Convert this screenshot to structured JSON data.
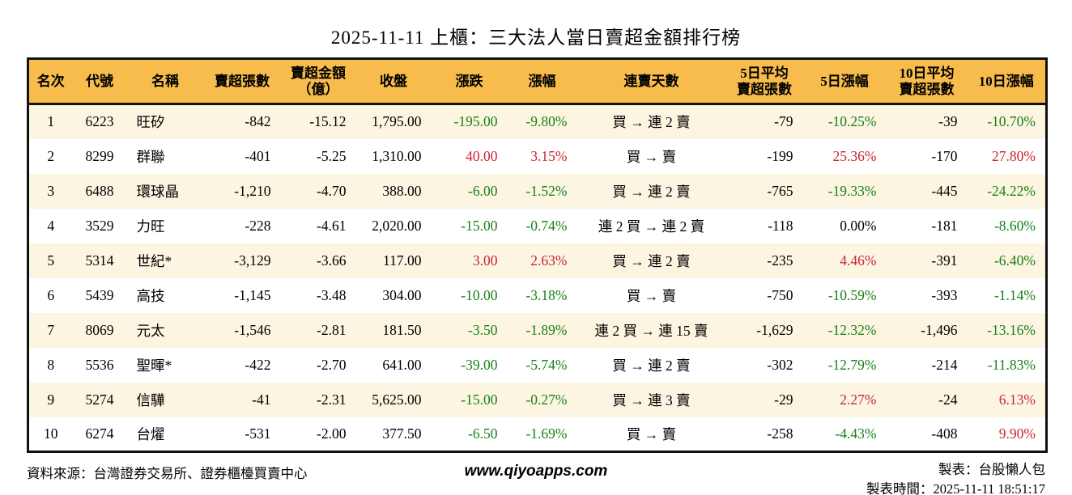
{
  "title": "2025-11-11 上櫃：三大法人當日賣超金額排行榜",
  "colors": {
    "header_bg": "#f8bc4c",
    "alt_row_bg": "#fcf5e2",
    "up_red": "#cb2230",
    "down_green": "#168116",
    "text": "#000000",
    "border": "#111111"
  },
  "table": {
    "headers": [
      "名次",
      "代號",
      "名稱",
      "賣超張數",
      "賣超金額\n（億）",
      "收盤",
      "漲跌",
      "漲幅",
      "連賣天數",
      "5日平均\n賣超張數",
      "5日漲幅",
      "10日平均\n賣超張數",
      "10日漲幅"
    ],
    "rows": [
      {
        "rank": "1",
        "code": "6223",
        "name": "旺矽",
        "sell_volume": "-842",
        "sell_amount": "-15.12",
        "close": "1,795.00",
        "change": "-195.00",
        "change_pct": "-9.80%",
        "streak": "買 → 連 2 賣",
        "avg5": "-79",
        "pct5": "-10.25%",
        "avg10": "-39",
        "pct10": "-10.70%"
      },
      {
        "rank": "2",
        "code": "8299",
        "name": "群聯",
        "sell_volume": "-401",
        "sell_amount": "-5.25",
        "close": "1,310.00",
        "change": "40.00",
        "change_pct": "3.15%",
        "streak": "買 → 賣",
        "avg5": "-199",
        "pct5": "25.36%",
        "avg10": "-170",
        "pct10": "27.80%"
      },
      {
        "rank": "3",
        "code": "6488",
        "name": "環球晶",
        "sell_volume": "-1,210",
        "sell_amount": "-4.70",
        "close": "388.00",
        "change": "-6.00",
        "change_pct": "-1.52%",
        "streak": "買 → 連 2 賣",
        "avg5": "-765",
        "pct5": "-19.33%",
        "avg10": "-445",
        "pct10": "-24.22%"
      },
      {
        "rank": "4",
        "code": "3529",
        "name": "力旺",
        "sell_volume": "-228",
        "sell_amount": "-4.61",
        "close": "2,020.00",
        "change": "-15.00",
        "change_pct": "-0.74%",
        "streak": "連 2 買 → 連 2 賣",
        "avg5": "-118",
        "pct5": "0.00%",
        "avg10": "-181",
        "pct10": "-8.60%"
      },
      {
        "rank": "5",
        "code": "5314",
        "name": "世紀*",
        "sell_volume": "-3,129",
        "sell_amount": "-3.66",
        "close": "117.00",
        "change": "3.00",
        "change_pct": "2.63%",
        "streak": "買 → 連 2 賣",
        "avg5": "-235",
        "pct5": "4.46%",
        "avg10": "-391",
        "pct10": "-6.40%"
      },
      {
        "rank": "6",
        "code": "5439",
        "name": "高技",
        "sell_volume": "-1,145",
        "sell_amount": "-3.48",
        "close": "304.00",
        "change": "-10.00",
        "change_pct": "-3.18%",
        "streak": "買 → 賣",
        "avg5": "-750",
        "pct5": "-10.59%",
        "avg10": "-393",
        "pct10": "-1.14%"
      },
      {
        "rank": "7",
        "code": "8069",
        "name": "元太",
        "sell_volume": "-1,546",
        "sell_amount": "-2.81",
        "close": "181.50",
        "change": "-3.50",
        "change_pct": "-1.89%",
        "streak": "連 2 買 → 連 15 賣",
        "avg5": "-1,629",
        "pct5": "-12.32%",
        "avg10": "-1,496",
        "pct10": "-13.16%"
      },
      {
        "rank": "8",
        "code": "5536",
        "name": "聖暉*",
        "sell_volume": "-422",
        "sell_amount": "-2.70",
        "close": "641.00",
        "change": "-39.00",
        "change_pct": "-5.74%",
        "streak": "買 → 連 2 賣",
        "avg5": "-302",
        "pct5": "-12.79%",
        "avg10": "-214",
        "pct10": "-11.83%"
      },
      {
        "rank": "9",
        "code": "5274",
        "name": "信驊",
        "sell_volume": "-41",
        "sell_amount": "-2.31",
        "close": "5,625.00",
        "change": "-15.00",
        "change_pct": "-0.27%",
        "streak": "買 → 連 3 賣",
        "avg5": "-29",
        "pct5": "2.27%",
        "avg10": "-24",
        "pct10": "6.13%"
      },
      {
        "rank": "10",
        "code": "6274",
        "name": "台燿",
        "sell_volume": "-531",
        "sell_amount": "-2.00",
        "close": "377.50",
        "change": "-6.50",
        "change_pct": "-1.69%",
        "streak": "買 → 賣",
        "avg5": "-258",
        "pct5": "-4.43%",
        "avg10": "-408",
        "pct10": "9.90%"
      }
    ]
  },
  "footer": {
    "source": "資料來源：台灣證券交易所、證券櫃檯買賣中心",
    "website": "www.qiyoapps.com",
    "maker": "製表：台股懶人包",
    "made_time": "製表時間：2025-11-11 18:51:17"
  }
}
